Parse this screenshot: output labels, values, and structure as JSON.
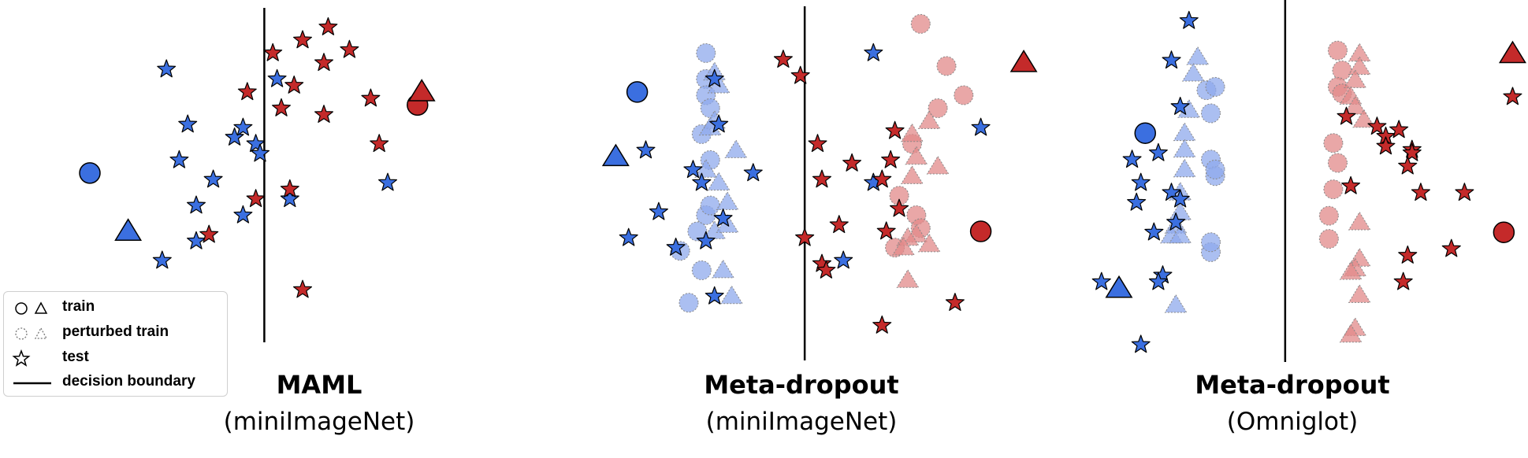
{
  "colors": {
    "blue": "#3B6FE0",
    "red": "#C42A2A",
    "blue_light": "#8FA9EC",
    "red_light": "#E28A8A",
    "edge": "#000000",
    "perturbed_edge": "#888888"
  },
  "legend": {
    "items": [
      {
        "label": "train",
        "symbol": "train-icon"
      },
      {
        "label": "perturbed train",
        "symbol": "perturbed-train-icon"
      },
      {
        "label": "test",
        "symbol": "test-star-icon"
      },
      {
        "label": "decision boundary",
        "symbol": "boundary-line-icon"
      }
    ]
  },
  "chart_data": [
    {
      "type": "scatter",
      "title": "MAML",
      "subtitle": "(miniImageNet)",
      "xlim": [
        0,
        100
      ],
      "ylim": [
        0,
        100
      ],
      "grid": false,
      "boundary_x": 51,
      "series": [
        {
          "class": "blue",
          "role": "train",
          "marker": "circle",
          "points": [
            [
              10,
              51
            ]
          ]
        },
        {
          "class": "blue",
          "role": "train",
          "marker": "triangle",
          "points": [
            [
              19,
              33
            ]
          ]
        },
        {
          "class": "red",
          "role": "train",
          "marker": "circle",
          "points": [
            [
              87,
              72
            ]
          ]
        },
        {
          "class": "red",
          "role": "train",
          "marker": "triangle",
          "points": [
            [
              88,
              76
            ]
          ]
        },
        {
          "class": "blue",
          "role": "test",
          "marker": "star",
          "points": [
            [
              28,
              83
            ],
            [
              33,
              66
            ],
            [
              31,
              55
            ],
            [
              39,
              49
            ],
            [
              35,
              41
            ],
            [
              35,
              30
            ],
            [
              27,
              24
            ],
            [
              46,
              38
            ],
            [
              44,
              62
            ],
            [
              46,
              65
            ],
            [
              49,
              60
            ],
            [
              50,
              57
            ],
            [
              54,
              80
            ],
            [
              57,
              43
            ],
            [
              80,
              48
            ]
          ]
        },
        {
          "class": "red",
          "role": "test",
          "marker": "star",
          "points": [
            [
              53,
              88
            ],
            [
              60,
              92
            ],
            [
              66,
              96
            ],
            [
              71,
              89
            ],
            [
              65,
              85
            ],
            [
              58,
              78
            ],
            [
              55,
              71
            ],
            [
              47,
              76
            ],
            [
              65,
              69
            ],
            [
              76,
              74
            ],
            [
              78,
              60
            ],
            [
              57,
              46
            ],
            [
              49,
              43
            ],
            [
              38,
              32
            ],
            [
              60,
              15
            ]
          ]
        }
      ]
    },
    {
      "type": "scatter",
      "title": "Meta-dropout",
      "subtitle": "(miniImageNet)",
      "xlim": [
        0,
        100
      ],
      "ylim": [
        0,
        100
      ],
      "grid": false,
      "boundary_x": 47,
      "series": [
        {
          "class": "blue",
          "role": "train",
          "marker": "circle",
          "points": [
            [
              8,
              76
            ]
          ]
        },
        {
          "class": "blue",
          "role": "train",
          "marker": "triangle",
          "points": [
            [
              3,
              56
            ]
          ]
        },
        {
          "class": "red",
          "role": "train",
          "marker": "circle",
          "points": [
            [
              88,
              33
            ]
          ]
        },
        {
          "class": "red",
          "role": "train",
          "marker": "triangle",
          "points": [
            [
              98,
              85
            ]
          ]
        },
        {
          "class": "blue",
          "role": "perturbed",
          "marker": "circle",
          "points": [
            [
              24,
              88
            ],
            [
              24,
              80
            ],
            [
              24,
              75
            ],
            [
              25,
              71
            ],
            [
              23,
              63
            ],
            [
              25,
              55
            ],
            [
              24,
              38
            ],
            [
              22,
              33
            ],
            [
              18,
              27
            ],
            [
              23,
              21
            ],
            [
              20,
              11
            ],
            [
              25,
              41
            ]
          ]
        },
        {
          "class": "blue",
          "role": "perturbed",
          "marker": "triangle",
          "points": [
            [
              26,
              82
            ],
            [
              27,
              78
            ],
            [
              26,
              67
            ],
            [
              25,
              65
            ],
            [
              31,
              58
            ],
            [
              24,
              52
            ],
            [
              27,
              48
            ],
            [
              29,
              42
            ],
            [
              26,
              33
            ],
            [
              29,
              35
            ],
            [
              28,
              21
            ],
            [
              30,
              13
            ]
          ]
        },
        {
          "class": "red",
          "role": "perturbed",
          "marker": "circle",
          "points": [
            [
              74,
              97
            ],
            [
              80,
              84
            ],
            [
              84,
              75
            ],
            [
              78,
              71
            ],
            [
              72,
              60
            ],
            [
              73,
              38
            ],
            [
              69,
              44
            ],
            [
              74,
              34
            ],
            [
              68,
              28
            ]
          ]
        },
        {
          "class": "red",
          "role": "perturbed",
          "marker": "triangle",
          "points": [
            [
              76,
              67
            ],
            [
              72,
              63
            ],
            [
              73,
              56
            ],
            [
              78,
              53
            ],
            [
              72,
              50
            ],
            [
              73,
              32
            ],
            [
              71,
              31
            ],
            [
              76,
              29
            ],
            [
              70,
              28
            ],
            [
              71,
              18
            ]
          ]
        },
        {
          "class": "blue",
          "role": "test",
          "marker": "star",
          "points": [
            [
              10,
              58
            ],
            [
              26,
              80
            ],
            [
              27,
              66
            ],
            [
              21,
              52
            ],
            [
              23,
              48
            ],
            [
              13,
              39
            ],
            [
              17,
              28
            ],
            [
              24,
              30
            ],
            [
              35,
              51
            ],
            [
              28,
              37
            ],
            [
              6,
              31
            ],
            [
              26,
              13
            ],
            [
              63,
              88
            ],
            [
              88,
              65
            ],
            [
              63,
              48
            ],
            [
              56,
              24
            ]
          ]
        },
        {
          "class": "red",
          "role": "test",
          "marker": "star",
          "points": [
            [
              42,
              86
            ],
            [
              46,
              81
            ],
            [
              50,
              60
            ],
            [
              58,
              54
            ],
            [
              51,
              49
            ],
            [
              68,
              64
            ],
            [
              67,
              55
            ],
            [
              65,
              49
            ],
            [
              69,
              40
            ],
            [
              66,
              33
            ],
            [
              55,
              35
            ],
            [
              47,
              31
            ],
            [
              51,
              23
            ],
            [
              52,
              21
            ],
            [
              82,
              11
            ],
            [
              65,
              4
            ]
          ]
        }
      ]
    },
    {
      "type": "scatter",
      "title": "Meta-dropout",
      "subtitle": "(Omniglot)",
      "xlim": [
        0,
        100
      ],
      "ylim": [
        0,
        100
      ],
      "grid": false,
      "boundary_x": 47,
      "series": [
        {
          "class": "blue",
          "role": "train",
          "marker": "circle",
          "points": [
            [
              15,
              64
            ]
          ]
        },
        {
          "class": "blue",
          "role": "train",
          "marker": "triangle",
          "points": [
            [
              9,
              17
            ]
          ]
        },
        {
          "class": "red",
          "role": "train",
          "marker": "circle",
          "points": [
            [
              97,
              34
            ]
          ]
        },
        {
          "class": "red",
          "role": "train",
          "marker": "triangle",
          "points": [
            [
              99,
              88
            ]
          ]
        },
        {
          "class": "blue",
          "role": "perturbed",
          "marker": "circle",
          "points": [
            [
              29,
              77
            ],
            [
              31,
              78
            ],
            [
              30,
              70
            ],
            [
              30,
              56
            ],
            [
              31,
              51
            ],
            [
              31,
              53
            ],
            [
              30,
              28
            ],
            [
              30,
              31
            ]
          ]
        },
        {
          "class": "blue",
          "role": "perturbed",
          "marker": "triangle",
          "points": [
            [
              27,
              87
            ],
            [
              26,
              82
            ],
            [
              25,
              71
            ],
            [
              24,
              64
            ],
            [
              24,
              59
            ],
            [
              24,
              53
            ],
            [
              23,
              46
            ],
            [
              23,
              40
            ],
            [
              22,
              36
            ],
            [
              21,
              33
            ],
            [
              23,
              33
            ],
            [
              22,
              12
            ]
          ]
        },
        {
          "class": "red",
          "role": "perturbed",
          "marker": "circle",
          "points": [
            [
              59,
              89
            ],
            [
              60,
              83
            ],
            [
              59,
              78
            ],
            [
              60,
              76
            ],
            [
              58,
              61
            ],
            [
              59,
              55
            ],
            [
              58,
              47
            ],
            [
              57,
              39
            ],
            [
              57,
              32
            ]
          ]
        },
        {
          "class": "red",
          "role": "perturbed",
          "marker": "triangle",
          "points": [
            [
              64,
              88
            ],
            [
              64,
              84
            ],
            [
              63,
              80
            ],
            [
              62,
              75
            ],
            [
              63,
              72
            ],
            [
              65,
              68
            ],
            [
              64,
              37
            ],
            [
              64,
              26
            ],
            [
              63,
              23
            ],
            [
              62,
              22
            ],
            [
              63,
              5
            ],
            [
              62,
              3
            ],
            [
              64,
              15
            ]
          ]
        },
        {
          "class": "blue",
          "role": "test",
          "marker": "star",
          "points": [
            [
              25,
              98
            ],
            [
              21,
              86
            ],
            [
              23,
              72
            ],
            [
              18,
              58
            ],
            [
              12,
              56
            ],
            [
              14,
              49
            ],
            [
              13,
              43
            ],
            [
              21,
              46
            ],
            [
              23,
              44
            ],
            [
              22,
              37
            ],
            [
              17,
              34
            ],
            [
              5,
              19
            ],
            [
              19,
              21
            ],
            [
              18,
              19
            ],
            [
              14,
              0
            ]
          ]
        },
        {
          "class": "red",
          "role": "test",
          "marker": "star",
          "points": [
            [
              61,
              69
            ],
            [
              68,
              66
            ],
            [
              70,
              63
            ],
            [
              73,
              65
            ],
            [
              76,
              59
            ],
            [
              70,
              60
            ],
            [
              76,
              58
            ],
            [
              75,
              54
            ],
            [
              62,
              48
            ],
            [
              78,
              46
            ],
            [
              88,
              46
            ],
            [
              99,
              75
            ],
            [
              85,
              29
            ],
            [
              75,
              27
            ],
            [
              74,
              19
            ]
          ]
        }
      ]
    }
  ]
}
